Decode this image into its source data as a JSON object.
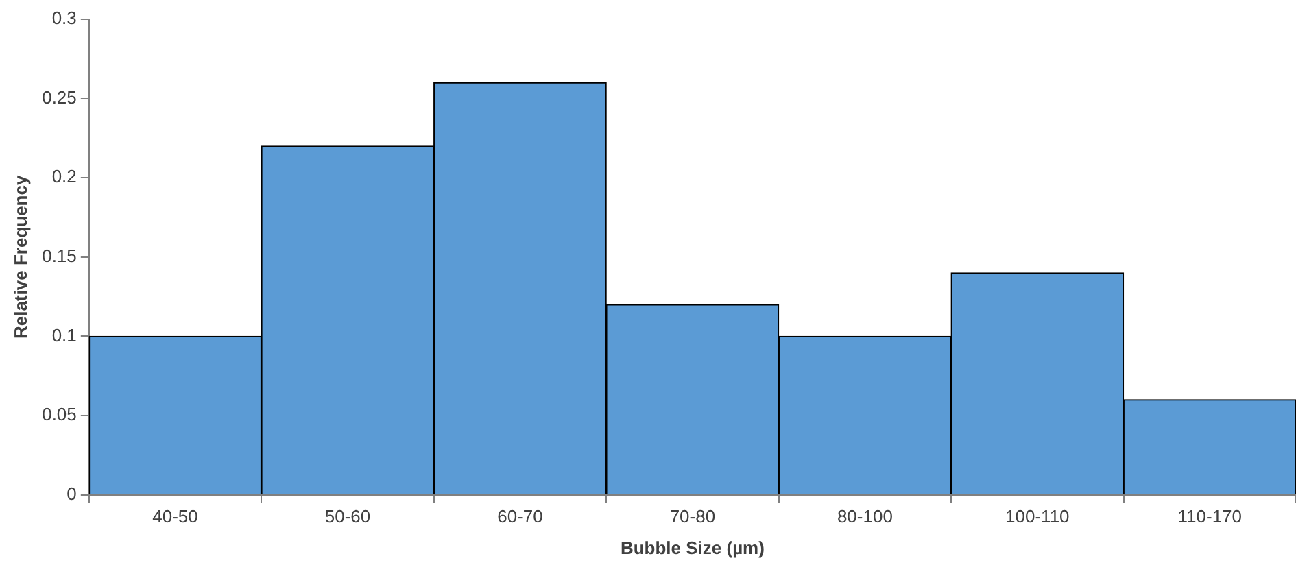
{
  "chart_data": {
    "type": "bar",
    "xlabel": "Bubble Size (µm)",
    "ylabel": "Relative Frequency",
    "categories": [
      "40-50",
      "50-60",
      "60-70",
      "70-80",
      "80-100",
      "100-110",
      "110-170"
    ],
    "values": [
      0.1,
      0.22,
      0.26,
      0.12,
      0.1,
      0.14,
      0.06
    ],
    "color": "#5b9bd5",
    "ylim": [
      0,
      0.3
    ],
    "yticks": [
      0,
      0.05,
      0.1,
      0.15,
      0.2,
      0.25,
      0.3
    ],
    "grid": false,
    "legend": false
  }
}
